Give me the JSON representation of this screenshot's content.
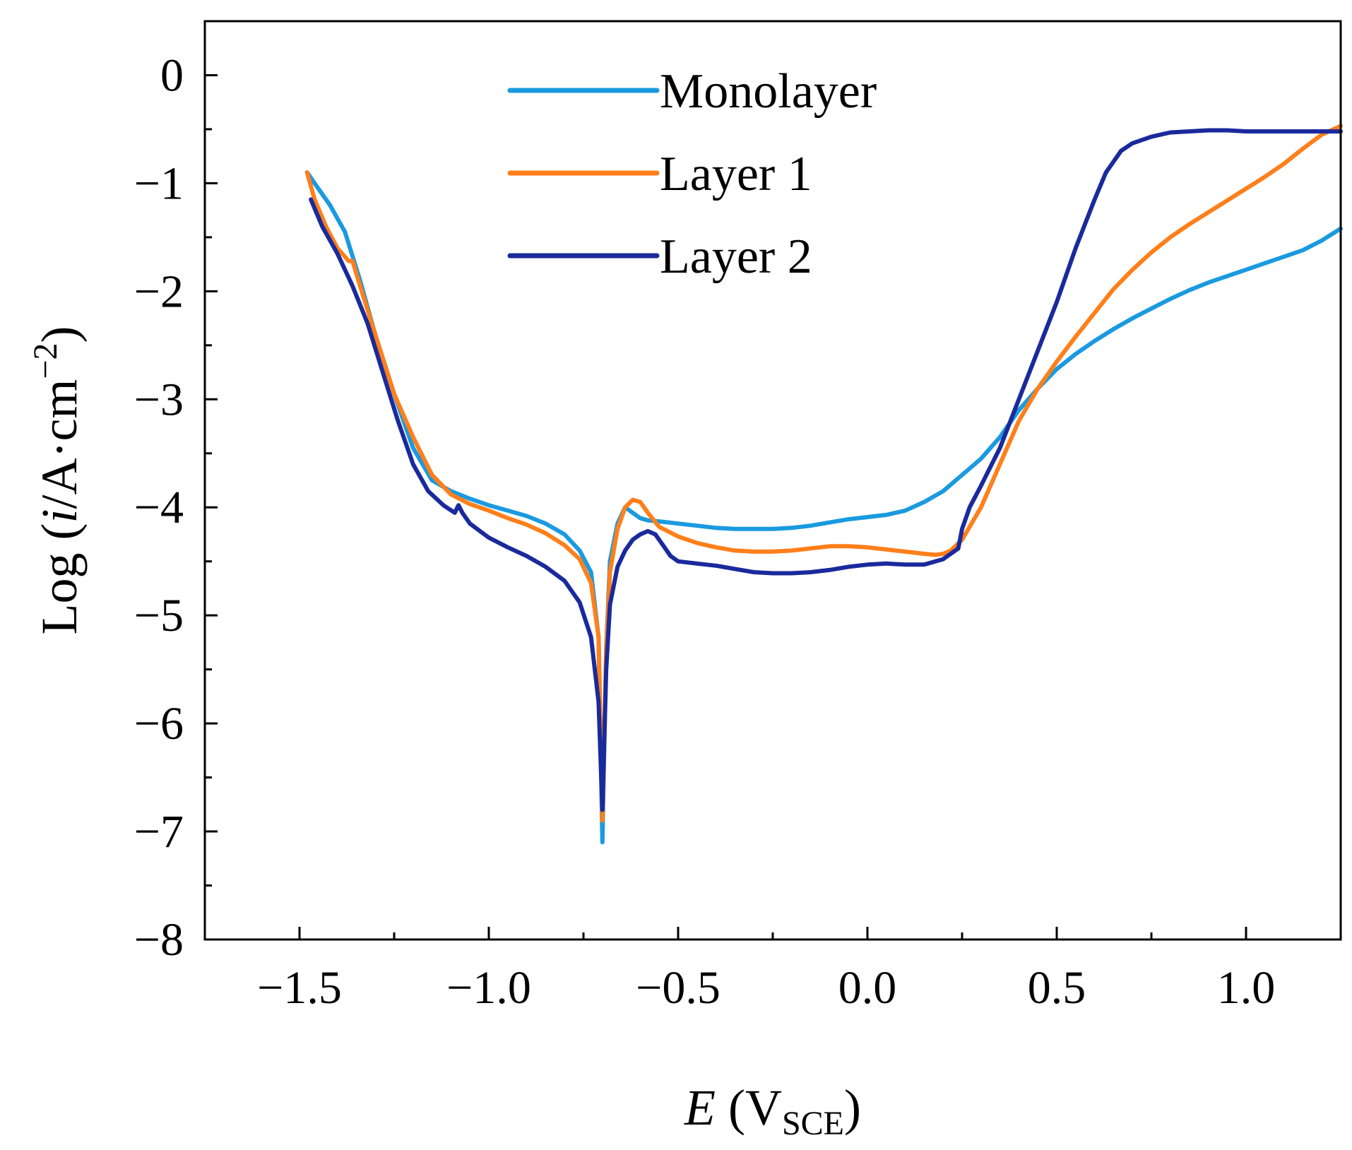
{
  "chart_data": {
    "type": "line",
    "title": "",
    "xlabel": {
      "symbol": "E",
      "open": " (V",
      "subscript": "SCE",
      "close": ")"
    },
    "ylabel": {
      "prefix": "Log (",
      "symbol": "i",
      "unit": "/A·cm",
      "superscript": "−2",
      "close": ")"
    },
    "xlim": [
      -1.75,
      1.25
    ],
    "ylim": [
      -8,
      0.5
    ],
    "xticks": [
      {
        "value": -1.5,
        "label": "−1.5"
      },
      {
        "value": -1.0,
        "label": "−1.0"
      },
      {
        "value": -0.5,
        "label": "−0.5"
      },
      {
        "value": 0.0,
        "label": "0.0"
      },
      {
        "value": 0.5,
        "label": "0.5"
      },
      {
        "value": 1.0,
        "label": "1.0"
      }
    ],
    "xminor": [
      -1.25,
      -0.75,
      -0.25,
      0.25,
      0.75
    ],
    "yticks": [
      {
        "value": 0,
        "label": "0"
      },
      {
        "value": -1,
        "label": "−1"
      },
      {
        "value": -2,
        "label": "−2"
      },
      {
        "value": -3,
        "label": "−3"
      },
      {
        "value": -4,
        "label": "−4"
      },
      {
        "value": -5,
        "label": "−5"
      },
      {
        "value": -6,
        "label": "−6"
      },
      {
        "value": -7,
        "label": "−7"
      },
      {
        "value": -8,
        "label": "−8"
      }
    ],
    "yminor": [
      -0.5,
      -1.5,
      -2.5,
      -3.5,
      -4.5,
      -5.5,
      -6.5,
      -7.5
    ],
    "legend_position": "top-center",
    "series": [
      {
        "name": "Monolayer",
        "color": "#1a9ae0",
        "x": [
          -1.48,
          -1.45,
          -1.42,
          -1.38,
          -1.34,
          -1.3,
          -1.25,
          -1.2,
          -1.15,
          -1.1,
          -1.05,
          -1.0,
          -0.95,
          -0.9,
          -0.85,
          -0.8,
          -0.76,
          -0.73,
          -0.71,
          -0.7,
          -0.69,
          -0.68,
          -0.66,
          -0.64,
          -0.62,
          -0.6,
          -0.58,
          -0.55,
          -0.5,
          -0.45,
          -0.4,
          -0.35,
          -0.3,
          -0.25,
          -0.2,
          -0.15,
          -0.1,
          -0.05,
          0.0,
          0.05,
          0.1,
          0.15,
          0.2,
          0.25,
          0.3,
          0.35,
          0.4,
          0.45,
          0.5,
          0.55,
          0.6,
          0.65,
          0.7,
          0.75,
          0.8,
          0.85,
          0.9,
          0.95,
          1.0,
          1.05,
          1.1,
          1.15,
          1.2,
          1.25
        ],
        "y": [
          -0.9,
          -1.05,
          -1.2,
          -1.45,
          -1.9,
          -2.4,
          -2.95,
          -3.45,
          -3.75,
          -3.85,
          -3.92,
          -3.98,
          -4.03,
          -4.08,
          -4.15,
          -4.25,
          -4.4,
          -4.6,
          -5.2,
          -7.1,
          -5.3,
          -4.5,
          -4.15,
          -4.0,
          -4.05,
          -4.1,
          -4.12,
          -4.13,
          -4.15,
          -4.17,
          -4.19,
          -4.2,
          -4.2,
          -4.2,
          -4.19,
          -4.17,
          -4.14,
          -4.11,
          -4.09,
          -4.07,
          -4.03,
          -3.95,
          -3.85,
          -3.7,
          -3.55,
          -3.35,
          -3.1,
          -2.9,
          -2.72,
          -2.58,
          -2.46,
          -2.35,
          -2.25,
          -2.16,
          -2.07,
          -1.99,
          -1.92,
          -1.86,
          -1.8,
          -1.74,
          -1.68,
          -1.62,
          -1.53,
          -1.42
        ]
      },
      {
        "name": "Layer 1",
        "color": "#ff7f1a",
        "x": [
          -1.48,
          -1.46,
          -1.43,
          -1.4,
          -1.37,
          -1.36,
          -1.34,
          -1.3,
          -1.25,
          -1.2,
          -1.15,
          -1.1,
          -1.05,
          -1.0,
          -0.95,
          -0.9,
          -0.85,
          -0.8,
          -0.76,
          -0.73,
          -0.71,
          -0.7,
          -0.69,
          -0.68,
          -0.66,
          -0.64,
          -0.62,
          -0.6,
          -0.58,
          -0.55,
          -0.5,
          -0.45,
          -0.4,
          -0.35,
          -0.3,
          -0.25,
          -0.2,
          -0.15,
          -0.1,
          -0.05,
          0.0,
          0.05,
          0.1,
          0.15,
          0.18,
          0.2,
          0.22,
          0.25,
          0.3,
          0.35,
          0.4,
          0.45,
          0.5,
          0.55,
          0.6,
          0.65,
          0.7,
          0.75,
          0.8,
          0.85,
          0.9,
          0.95,
          1.0,
          1.05,
          1.1,
          1.15,
          1.2,
          1.25
        ],
        "y": [
          -0.9,
          -1.15,
          -1.4,
          -1.6,
          -1.72,
          -1.72,
          -1.95,
          -2.4,
          -2.95,
          -3.35,
          -3.7,
          -3.88,
          -3.97,
          -4.03,
          -4.1,
          -4.16,
          -4.24,
          -4.35,
          -4.48,
          -4.7,
          -5.2,
          -6.9,
          -5.3,
          -4.6,
          -4.2,
          -4.0,
          -3.93,
          -3.95,
          -4.05,
          -4.18,
          -4.27,
          -4.33,
          -4.37,
          -4.4,
          -4.41,
          -4.41,
          -4.4,
          -4.38,
          -4.36,
          -4.36,
          -4.37,
          -4.39,
          -4.41,
          -4.43,
          -4.44,
          -4.43,
          -4.4,
          -4.3,
          -4.0,
          -3.6,
          -3.2,
          -2.9,
          -2.65,
          -2.42,
          -2.2,
          -1.98,
          -1.8,
          -1.64,
          -1.5,
          -1.38,
          -1.27,
          -1.16,
          -1.05,
          -0.94,
          -0.82,
          -0.68,
          -0.55,
          -0.47
        ]
      },
      {
        "name": "Layer 2",
        "color": "#1a2a9c",
        "x": [
          -1.47,
          -1.44,
          -1.4,
          -1.36,
          -1.32,
          -1.28,
          -1.24,
          -1.2,
          -1.16,
          -1.12,
          -1.09,
          -1.08,
          -1.07,
          -1.05,
          -1.0,
          -0.95,
          -0.9,
          -0.85,
          -0.8,
          -0.76,
          -0.73,
          -0.71,
          -0.7,
          -0.69,
          -0.68,
          -0.66,
          -0.64,
          -0.62,
          -0.6,
          -0.58,
          -0.56,
          -0.54,
          -0.52,
          -0.5,
          -0.45,
          -0.4,
          -0.35,
          -0.3,
          -0.25,
          -0.2,
          -0.15,
          -0.1,
          -0.05,
          0.0,
          0.05,
          0.1,
          0.15,
          0.2,
          0.24,
          0.25,
          0.27,
          0.3,
          0.35,
          0.4,
          0.45,
          0.5,
          0.55,
          0.6,
          0.63,
          0.65,
          0.67,
          0.7,
          0.75,
          0.8,
          0.85,
          0.9,
          0.95,
          1.0,
          1.1,
          1.2,
          1.25
        ],
        "y": [
          -1.15,
          -1.4,
          -1.65,
          -1.95,
          -2.3,
          -2.75,
          -3.2,
          -3.6,
          -3.85,
          -3.98,
          -4.05,
          -3.98,
          -4.05,
          -4.15,
          -4.28,
          -4.37,
          -4.45,
          -4.55,
          -4.68,
          -4.88,
          -5.2,
          -5.8,
          -6.8,
          -5.5,
          -4.9,
          -4.55,
          -4.4,
          -4.3,
          -4.25,
          -4.22,
          -4.25,
          -4.35,
          -4.45,
          -4.5,
          -4.52,
          -4.54,
          -4.57,
          -4.6,
          -4.61,
          -4.61,
          -4.6,
          -4.58,
          -4.55,
          -4.53,
          -4.52,
          -4.53,
          -4.53,
          -4.48,
          -4.38,
          -4.2,
          -4.0,
          -3.8,
          -3.45,
          -3.0,
          -2.55,
          -2.1,
          -1.6,
          -1.15,
          -0.9,
          -0.8,
          -0.7,
          -0.63,
          -0.57,
          -0.53,
          -0.52,
          -0.51,
          -0.51,
          -0.52,
          -0.52,
          -0.52,
          -0.52
        ]
      }
    ]
  }
}
